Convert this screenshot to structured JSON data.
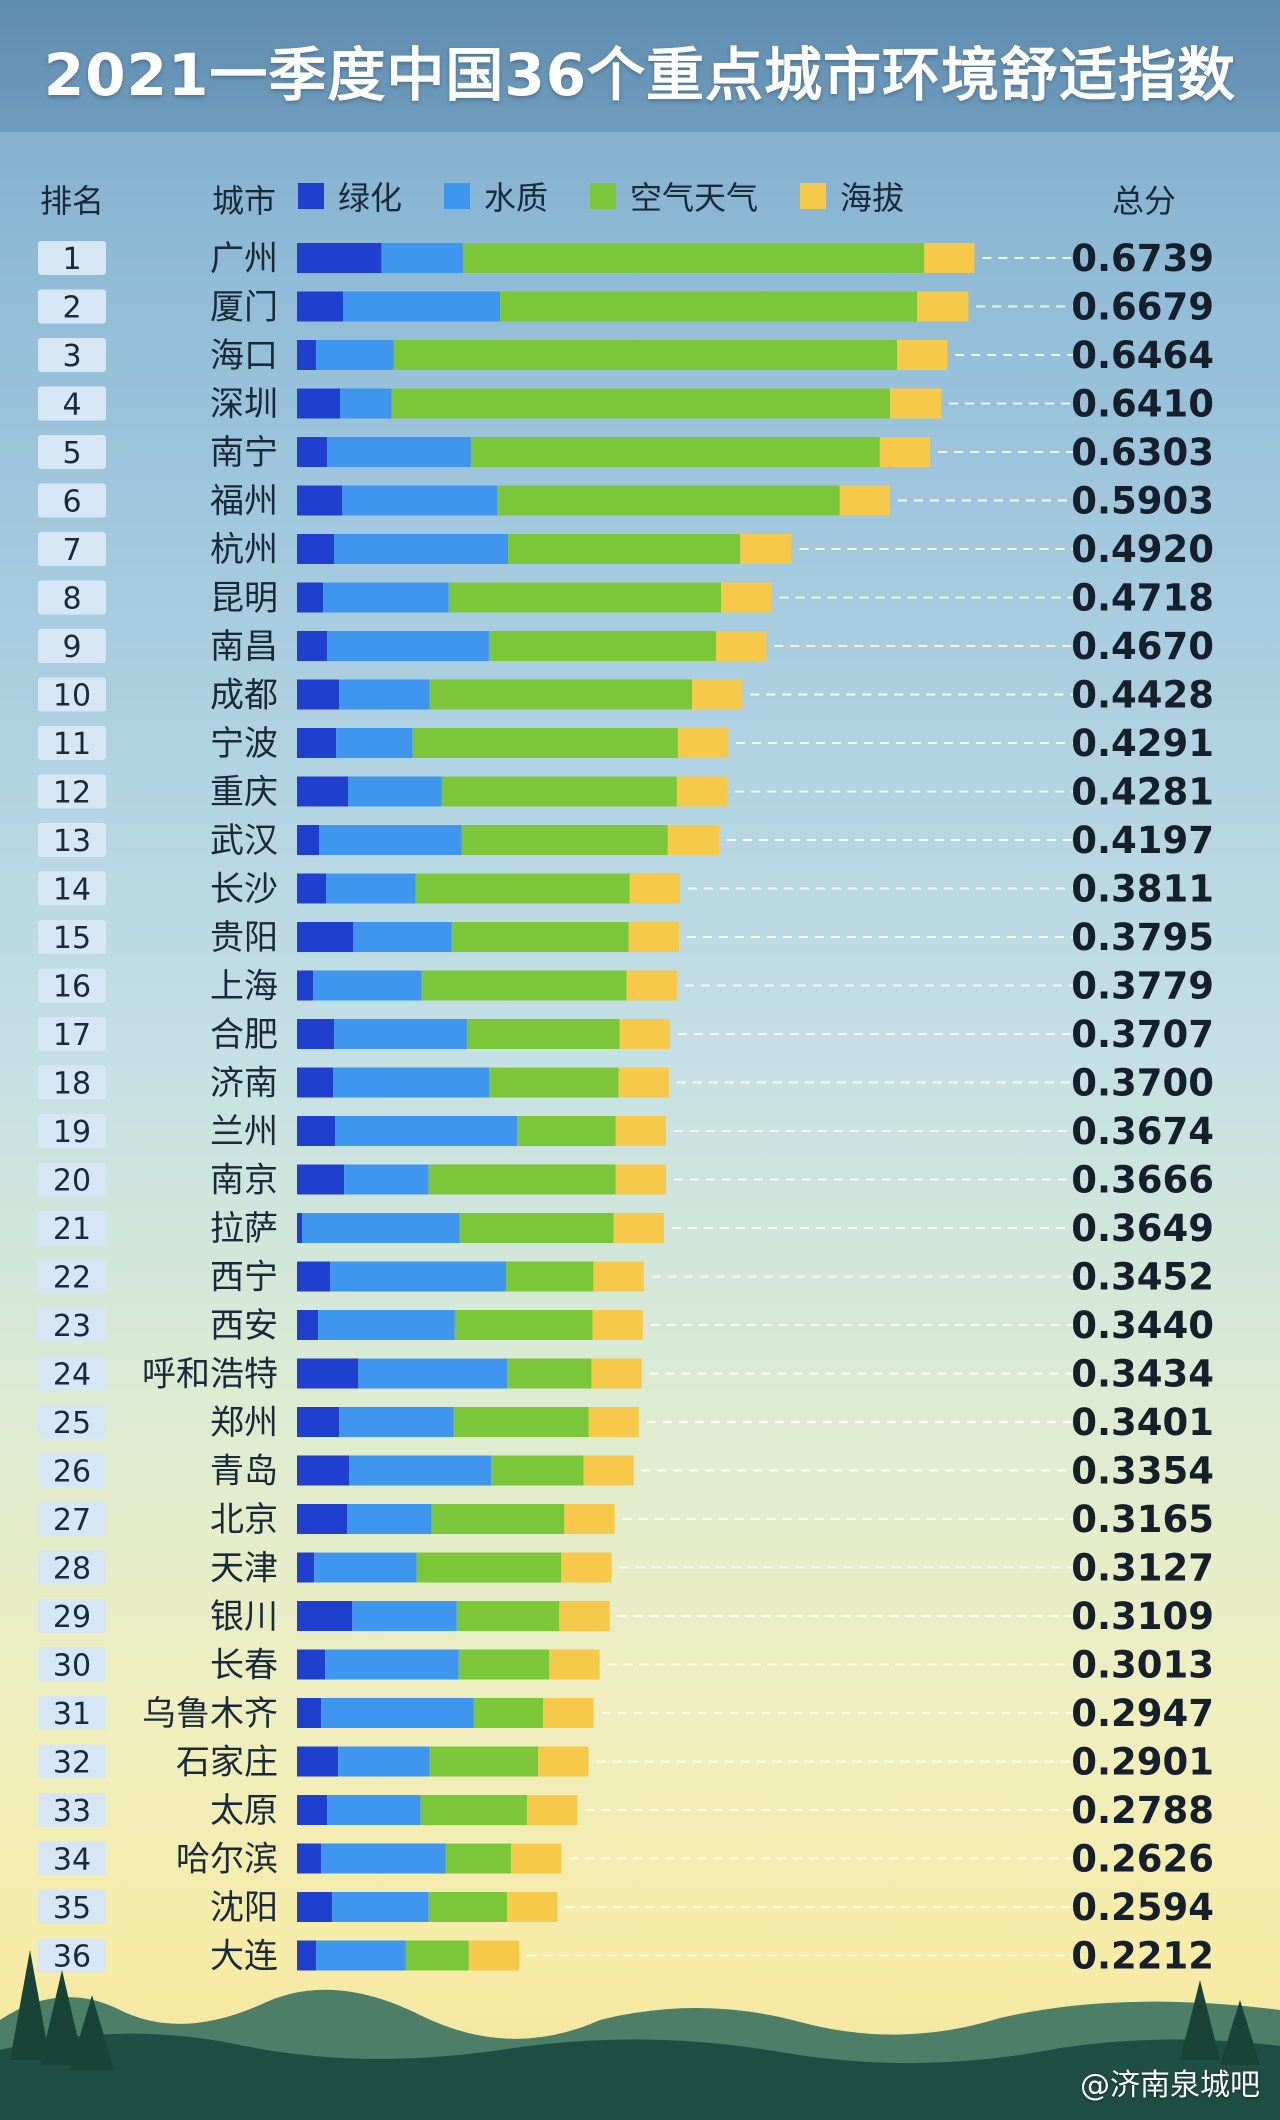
{
  "title": "2021一季度中国36个重点城市环境舒适指数",
  "headers": {
    "rank": "排名",
    "city": "城市",
    "total": "总分"
  },
  "watermark": "@济南泉城吧",
  "chart_data": {
    "type": "bar",
    "orientation": "horizontal",
    "stacked": true,
    "legend_position": "top",
    "grid": false,
    "colors": {
      "green": "#1f3fcf",
      "water": "#3f96ee",
      "air": "#7cc63a",
      "altitude": "#f6c94a"
    },
    "series": [
      {
        "name": "绿化",
        "key": "green"
      },
      {
        "name": "水质",
        "key": "water"
      },
      {
        "name": "空气天气",
        "key": "air"
      },
      {
        "name": "海拔",
        "key": "altitude"
      }
    ],
    "rows": [
      {
        "rank": "1",
        "city": "广州",
        "total": "0.6739",
        "values": [
          0.084,
          0.081,
          0.459,
          0.05
        ]
      },
      {
        "rank": "2",
        "city": "厦门",
        "total": "0.6679",
        "values": [
          0.046,
          0.156,
          0.415,
          0.051
        ]
      },
      {
        "rank": "3",
        "city": "海口",
        "total": "0.6464",
        "values": [
          0.019,
          0.077,
          0.501,
          0.05
        ]
      },
      {
        "rank": "4",
        "city": "深圳",
        "total": "0.6410",
        "values": [
          0.043,
          0.051,
          0.496,
          0.051
        ]
      },
      {
        "rank": "5",
        "city": "南宁",
        "total": "0.6303",
        "values": [
          0.03,
          0.143,
          0.407,
          0.05
        ]
      },
      {
        "rank": "6",
        "city": "福州",
        "total": "0.5903",
        "values": [
          0.045,
          0.154,
          0.341,
          0.05
        ]
      },
      {
        "rank": "7",
        "city": "杭州",
        "total": "0.4920",
        "values": [
          0.037,
          0.173,
          0.231,
          0.051
        ]
      },
      {
        "rank": "8",
        "city": "昆明",
        "total": "0.4718",
        "values": [
          0.026,
          0.125,
          0.271,
          0.05
        ]
      },
      {
        "rank": "9",
        "city": "南昌",
        "total": "0.4670",
        "values": [
          0.03,
          0.161,
          0.226,
          0.05
        ]
      },
      {
        "rank": "10",
        "city": "成都",
        "total": "0.4428",
        "values": [
          0.042,
          0.09,
          0.261,
          0.05
        ]
      },
      {
        "rank": "11",
        "city": "宁波",
        "total": "0.4291",
        "values": [
          0.039,
          0.076,
          0.264,
          0.05
        ]
      },
      {
        "rank": "12",
        "city": "重庆",
        "total": "0.4281",
        "values": [
          0.051,
          0.093,
          0.234,
          0.05
        ]
      },
      {
        "rank": "13",
        "city": "武汉",
        "total": "0.4197",
        "values": [
          0.022,
          0.142,
          0.205,
          0.051
        ]
      },
      {
        "rank": "14",
        "city": "长沙",
        "total": "0.3811",
        "values": [
          0.029,
          0.089,
          0.213,
          0.05
        ]
      },
      {
        "rank": "15",
        "city": "贵阳",
        "total": "0.3795",
        "values": [
          0.056,
          0.098,
          0.176,
          0.05
        ]
      },
      {
        "rank": "16",
        "city": "上海",
        "total": "0.3779",
        "values": [
          0.016,
          0.108,
          0.204,
          0.05
        ]
      },
      {
        "rank": "17",
        "city": "合肥",
        "total": "0.3707",
        "values": [
          0.037,
          0.132,
          0.152,
          0.05
        ]
      },
      {
        "rank": "18",
        "city": "济南",
        "total": "0.3700",
        "values": [
          0.036,
          0.155,
          0.129,
          0.05
        ]
      },
      {
        "rank": "19",
        "city": "兰州",
        "total": "0.3674",
        "values": [
          0.038,
          0.181,
          0.098,
          0.05
        ]
      },
      {
        "rank": "20",
        "city": "南京",
        "total": "0.3666",
        "values": [
          0.047,
          0.084,
          0.186,
          0.05
        ]
      },
      {
        "rank": "21",
        "city": "拉萨",
        "total": "0.3649",
        "values": [
          0.005,
          0.157,
          0.153,
          0.05
        ]
      },
      {
        "rank": "22",
        "city": "西宁",
        "total": "0.3452",
        "values": [
          0.033,
          0.175,
          0.087,
          0.05
        ]
      },
      {
        "rank": "23",
        "city": "西安",
        "total": "0.3440",
        "values": [
          0.021,
          0.136,
          0.137,
          0.05
        ]
      },
      {
        "rank": "24",
        "city": "呼和浩特",
        "total": "0.3434",
        "values": [
          0.061,
          0.148,
          0.084,
          0.05
        ]
      },
      {
        "rank": "25",
        "city": "郑州",
        "total": "0.3401",
        "values": [
          0.042,
          0.114,
          0.134,
          0.05
        ]
      },
      {
        "rank": "26",
        "city": "青岛",
        "total": "0.3354",
        "values": [
          0.052,
          0.141,
          0.092,
          0.05
        ]
      },
      {
        "rank": "27",
        "city": "北京",
        "total": "0.3165",
        "values": [
          0.05,
          0.084,
          0.132,
          0.05
        ]
      },
      {
        "rank": "28",
        "city": "天津",
        "total": "0.3127",
        "values": [
          0.017,
          0.102,
          0.144,
          0.05
        ]
      },
      {
        "rank": "29",
        "city": "银川",
        "total": "0.3109",
        "values": [
          0.055,
          0.104,
          0.102,
          0.05
        ]
      },
      {
        "rank": "30",
        "city": "长春",
        "total": "0.3013",
        "values": [
          0.028,
          0.133,
          0.09,
          0.05
        ]
      },
      {
        "rank": "31",
        "city": "乌鲁木齐",
        "total": "0.2947",
        "values": [
          0.024,
          0.152,
          0.069,
          0.05
        ]
      },
      {
        "rank": "32",
        "city": "石家庄",
        "total": "0.2901",
        "values": [
          0.041,
          0.091,
          0.108,
          0.05
        ]
      },
      {
        "rank": "33",
        "city": "太原",
        "total": "0.2788",
        "values": [
          0.03,
          0.093,
          0.106,
          0.05
        ]
      },
      {
        "rank": "34",
        "city": "哈尔滨",
        "total": "0.2626",
        "values": [
          0.024,
          0.124,
          0.065,
          0.05
        ]
      },
      {
        "rank": "35",
        "city": "沈阳",
        "total": "0.2594",
        "values": [
          0.035,
          0.096,
          0.078,
          0.05
        ]
      },
      {
        "rank": "36",
        "city": "大连",
        "total": "0.2212",
        "values": [
          0.019,
          0.089,
          0.063,
          0.05
        ]
      }
    ]
  }
}
